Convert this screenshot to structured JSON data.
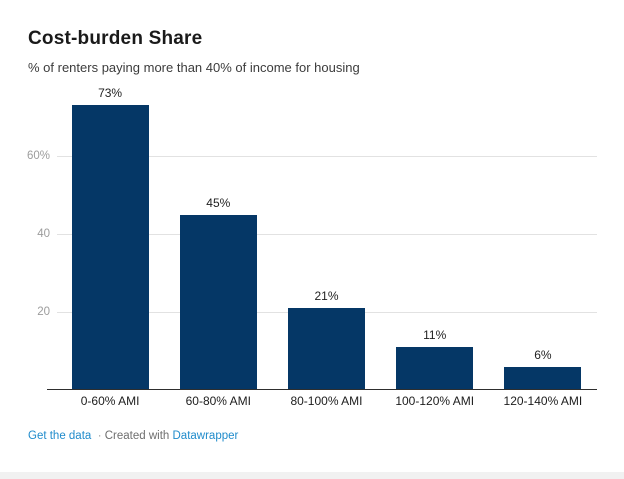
{
  "header": {
    "title": "Cost-burden Share",
    "subtitle": "% of renters paying more than 40% of income for housing"
  },
  "footer": {
    "get_data_label": "Get the data",
    "separator": "·",
    "created_with_label": "Created with",
    "datawrapper_label": "Datawrapper"
  },
  "colors": {
    "bar": "#053766",
    "link_blue": "#1f8bcb",
    "grid": "#e2e2e2",
    "ytick_label": "#9c9c9c",
    "baseline": "#2e2e2e",
    "title": "#1a1a1a",
    "subtitle": "#3c3c3c",
    "value_label": "#1f1f1f",
    "category_label": "#1d1d1d",
    "footer_gray": "#6e6e6e",
    "footer_separator": "#999999",
    "bottom_strip": "#f1f1f1"
  },
  "chart_data": {
    "type": "bar",
    "title": "Cost-burden Share",
    "subtitle": "% of renters paying more than 40% of income for housing",
    "categories": [
      "0-60% AMI",
      "60-80% AMI",
      "80-100% AMI",
      "100-120% AMI",
      "120-140% AMI"
    ],
    "values": [
      73,
      45,
      21,
      11,
      6
    ],
    "value_labels": [
      "73%",
      "45%",
      "21%",
      "11%",
      "6%"
    ],
    "xlabel": "",
    "ylabel": "",
    "ylim": [
      0,
      76
    ],
    "yticks": [
      {
        "value": 20,
        "label": "20"
      },
      {
        "value": 40,
        "label": "40"
      },
      {
        "value": 60,
        "label": "60%"
      }
    ],
    "grid": true,
    "legend": false
  }
}
